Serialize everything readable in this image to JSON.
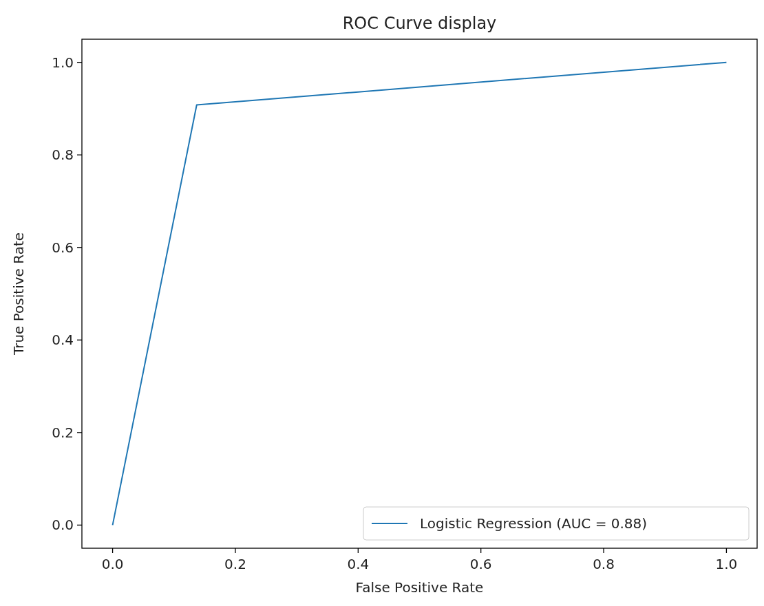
{
  "chart_data": {
    "type": "line",
    "title": "ROC Curve display",
    "xlabel": "False Positive Rate",
    "ylabel": "True Positive Rate",
    "xlim": [
      -0.05,
      1.05
    ],
    "ylim": [
      -0.05,
      1.05
    ],
    "xticks": [
      {
        "value": 0,
        "label": "0.0"
      },
      {
        "value": 0.2,
        "label": "0.2"
      },
      {
        "value": 0.4,
        "label": "0.4"
      },
      {
        "value": 0.6,
        "label": "0.6"
      },
      {
        "value": 0.8,
        "label": "0.8"
      },
      {
        "value": 1,
        "label": "1.0"
      }
    ],
    "yticks": [
      {
        "value": 0,
        "label": "0.0"
      },
      {
        "value": 0.2,
        "label": "0.2"
      },
      {
        "value": 0.4,
        "label": "0.4"
      },
      {
        "value": 0.6,
        "label": "0.6"
      },
      {
        "value": 0.8,
        "label": "0.8"
      },
      {
        "value": 1,
        "label": "1.0"
      }
    ],
    "series": [
      {
        "name": "Logistic Regression (AUC = 0.88)",
        "color": "#1f77b4",
        "x": [
          0,
          0.137,
          1
        ],
        "values": [
          0,
          0.908,
          1
        ]
      }
    ],
    "legend": "bottom right",
    "grid": false
  }
}
